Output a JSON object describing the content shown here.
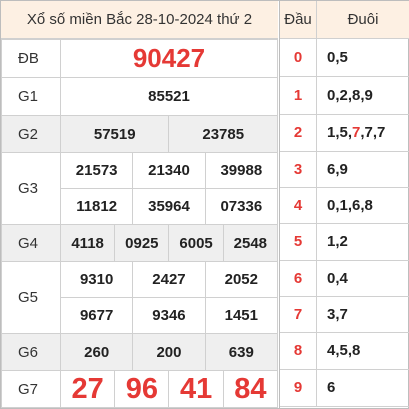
{
  "title": "Xổ số miền Bắc 28-10-2024 thứ 2",
  "rows": {
    "db": {
      "label": "ĐB",
      "values": [
        "90427"
      ]
    },
    "g1": {
      "label": "G1",
      "values": [
        "85521"
      ]
    },
    "g2": {
      "label": "G2",
      "values": [
        "57519",
        "23785"
      ]
    },
    "g3": {
      "label": "G3",
      "values": [
        "21573",
        "21340",
        "39988",
        "11812",
        "35964",
        "07336"
      ]
    },
    "g4": {
      "label": "G4",
      "values": [
        "4118",
        "0925",
        "6005",
        "2548"
      ]
    },
    "g5": {
      "label": "G5",
      "values": [
        "9310",
        "2427",
        "2052",
        "9677",
        "9346",
        "1451"
      ]
    },
    "g6": {
      "label": "G6",
      "values": [
        "260",
        "200",
        "639"
      ]
    },
    "g7": {
      "label": "G7",
      "values": [
        "27",
        "96",
        "41",
        "84"
      ]
    }
  },
  "loto": {
    "head_label": "Đầu",
    "tail_label": "Đuôi",
    "rows": [
      {
        "head": "0",
        "tails": "0,5"
      },
      {
        "head": "1",
        "tails": "0,2,8,9"
      },
      {
        "head": "2",
        "tails_a": "1,5,",
        "tails_red": "7",
        "tails_b": ",7,7"
      },
      {
        "head": "3",
        "tails": "6,9"
      },
      {
        "head": "4",
        "tails": "0,1,6,8"
      },
      {
        "head": "5",
        "tails": "1,2"
      },
      {
        "head": "6",
        "tails": "0,4"
      },
      {
        "head": "7",
        "tails": "3,7"
      },
      {
        "head": "8",
        "tails": "4,5,8"
      },
      {
        "head": "9",
        "tails": "6"
      }
    ]
  }
}
